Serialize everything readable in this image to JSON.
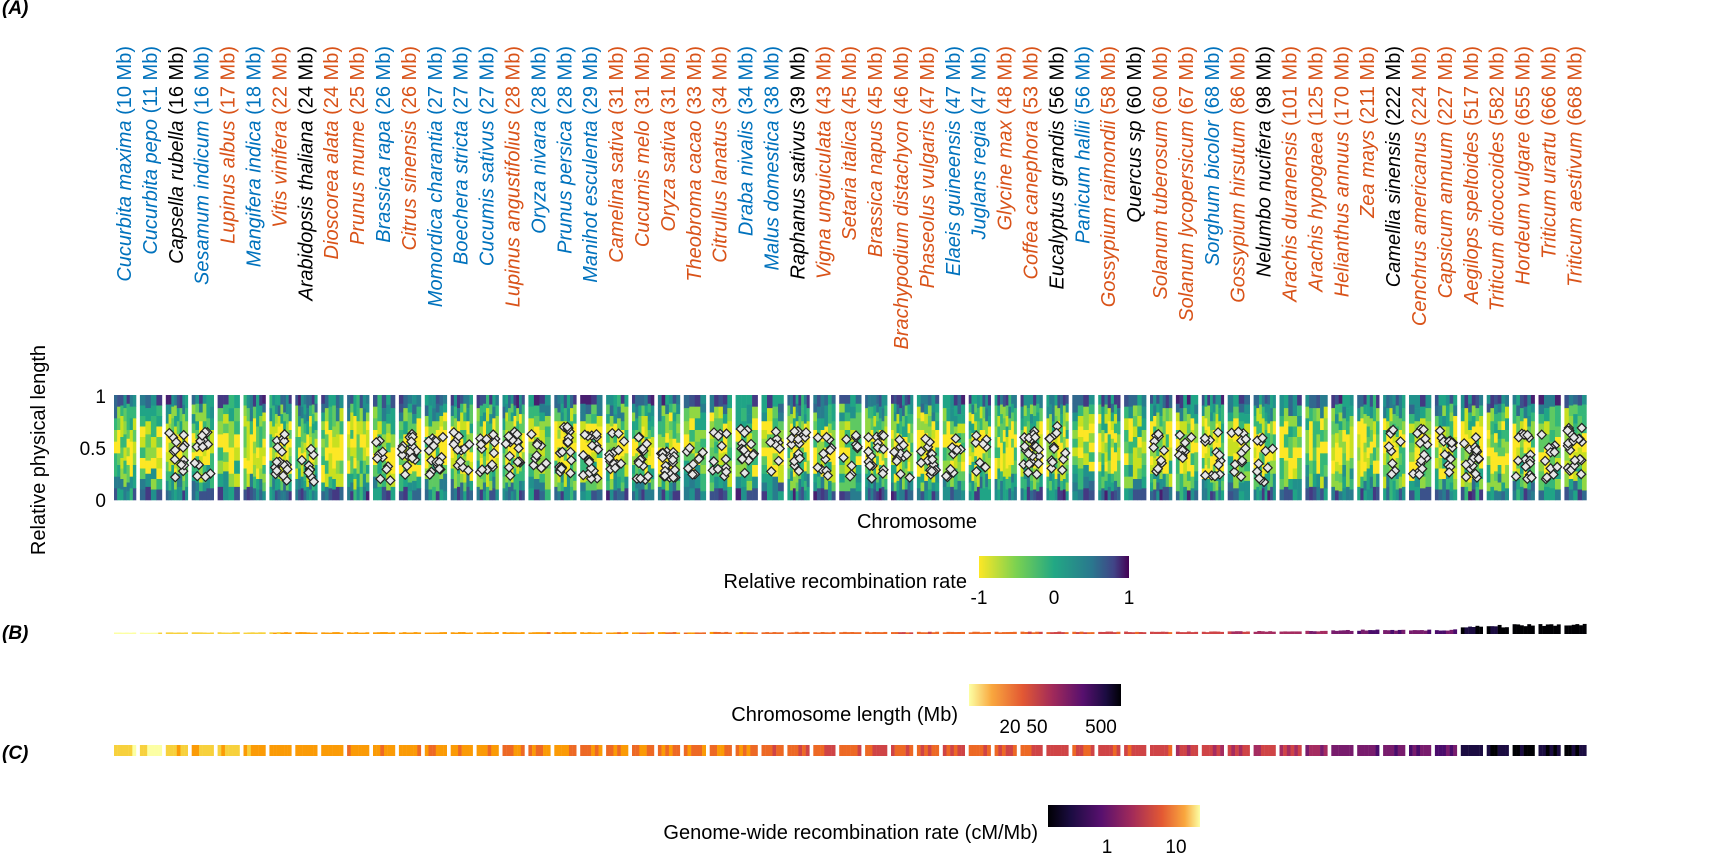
{
  "panel_labels": {
    "a": "(A)",
    "b": "(B)",
    "c": "(C)"
  },
  "colors": {
    "orange": "#d95319",
    "blue": "#0072bd",
    "black": "#000000"
  },
  "chart_data": [
    {
      "type": "heatmap",
      "panel": "A",
      "xlabel": "Chromosome",
      "ylabel": "Relative physical length",
      "yticks": [
        "1",
        "0.5",
        "0"
      ],
      "ylim": [
        0,
        1
      ],
      "colorbar": {
        "label": "Relative recombination rate",
        "ticks": [
          "-1",
          "0",
          "1"
        ],
        "colormap": "viridis (reversed)"
      },
      "species": [
        {
          "italic": "Cucurbita maxima",
          "rest": " (10 Mb)",
          "color": "blue"
        },
        {
          "italic": "Cucurbita pepo",
          "rest": " (11 Mb)",
          "color": "blue"
        },
        {
          "italic": "Capsella rubella",
          "rest": " (16 Mb)",
          "color": "black"
        },
        {
          "italic": "Sesamum indicum",
          "rest": " (16 Mb)",
          "color": "blue"
        },
        {
          "italic": "Lupinus albus",
          "rest": " (17 Mb)",
          "color": "orange"
        },
        {
          "italic": "Mangifera indica",
          "rest": " (18 Mb)",
          "color": "blue"
        },
        {
          "italic": "Vitis vinifera",
          "rest": " (22 Mb)",
          "color": "orange"
        },
        {
          "italic": "Arabidopsis thaliana",
          "rest": " (24 Mb)",
          "color": "black"
        },
        {
          "italic": "Dioscorea alata",
          "rest": " (24 Mb)",
          "color": "orange"
        },
        {
          "italic": "Prunus mume",
          "rest": " (25 Mb)",
          "color": "orange"
        },
        {
          "italic": "Brassica rapa",
          "rest": " (26 Mb)",
          "color": "blue"
        },
        {
          "italic": "Citrus sinensis",
          "rest": " (26 Mb)",
          "color": "orange"
        },
        {
          "italic": "Momordica charantia",
          "rest": " (27 Mb)",
          "color": "blue"
        },
        {
          "italic": "Boechera stricta",
          "rest": " (27 Mb)",
          "color": "blue"
        },
        {
          "italic": "Cucumis sativus",
          "rest": " (27 Mb)",
          "color": "blue"
        },
        {
          "italic": "Lupinus angustifolius",
          "rest": " (28 Mb)",
          "color": "orange"
        },
        {
          "italic": "Oryza nivara",
          "rest": " (28 Mb)",
          "color": "blue"
        },
        {
          "italic": "Prunus persica",
          "rest": " (28 Mb)",
          "color": "blue"
        },
        {
          "italic": "Manihot esculenta",
          "rest": " (29 Mb)",
          "color": "blue"
        },
        {
          "italic": "Camelina sativa",
          "rest": " (31 Mb)",
          "color": "orange"
        },
        {
          "italic": "Cucumis melo",
          "rest": " (31 Mb)",
          "color": "orange"
        },
        {
          "italic": "Oryza sativa",
          "rest": " (31 Mb)",
          "color": "orange"
        },
        {
          "italic": "Theobroma cacao",
          "rest": " (33 Mb)",
          "color": "orange"
        },
        {
          "italic": "Citrullus lanatus",
          "rest": " (34 Mb)",
          "color": "orange"
        },
        {
          "italic": "Draba nivalis",
          "rest": " (34 Mb)",
          "color": "blue"
        },
        {
          "italic": "Malus domestica",
          "rest": " (38 Mb)",
          "color": "blue"
        },
        {
          "italic": "Raphanus sativus",
          "rest": " (39 Mb)",
          "color": "black"
        },
        {
          "italic": "Vigna unguiculata",
          "rest": " (43 Mb)",
          "color": "orange"
        },
        {
          "italic": "Setaria italica",
          "rest": " (45 Mb)",
          "color": "orange"
        },
        {
          "italic": "Brassica napus",
          "rest": " (45 Mb)",
          "color": "orange"
        },
        {
          "italic": "Brachypodium distachyon",
          "rest": " (46 Mb)",
          "color": "orange"
        },
        {
          "italic": "Phaseolus vulgaris",
          "rest": " (47 Mb)",
          "color": "orange"
        },
        {
          "italic": "Elaeis guineensis",
          "rest": " (47 Mb)",
          "color": "blue"
        },
        {
          "italic": "Juglans regia",
          "rest": " (47 Mb)",
          "color": "blue"
        },
        {
          "italic": "Glycine max",
          "rest": " (48 Mb)",
          "color": "orange"
        },
        {
          "italic": "Coffea canephora",
          "rest": " (53 Mb)",
          "color": "orange"
        },
        {
          "italic": "Eucalyptus grandis",
          "rest": " (56 Mb)",
          "color": "black"
        },
        {
          "italic": "Panicum hallii",
          "rest": " (56 Mb)",
          "color": "blue"
        },
        {
          "italic": "Gossypium raimondii",
          "rest": " (58 Mb)",
          "color": "orange"
        },
        {
          "italic": "Quercus sp",
          "rest": " (60 Mb)",
          "color": "black"
        },
        {
          "italic": "Solanum tuberosum",
          "rest": " (60 Mb)",
          "color": "orange"
        },
        {
          "italic": "Solanum lycopersicum",
          "rest": " (67 Mb)",
          "color": "orange"
        },
        {
          "italic": "Sorghum bicolor",
          "rest": " (68 Mb)",
          "color": "blue"
        },
        {
          "italic": "Gossypium hirsutum",
          "rest": " (86 Mb)",
          "color": "orange"
        },
        {
          "italic": "Nelumbo nucifera",
          "rest": " (98 Mb)",
          "color": "black"
        },
        {
          "italic": "Arachis duranensis",
          "rest": " (101 Mb)",
          "color": "orange"
        },
        {
          "italic": "Arachis hypogaea",
          "rest": " (125 Mb)",
          "color": "orange"
        },
        {
          "italic": "Helianthus annuus",
          "rest": " (170 Mb)",
          "color": "orange"
        },
        {
          "italic": "Zea mays",
          "rest": " (211 Mb)",
          "color": "orange"
        },
        {
          "italic": "Camellia sinensis",
          "rest": " (222 Mb)",
          "color": "black"
        },
        {
          "italic": "Cenchrus americanus",
          "rest": " (224 Mb)",
          "color": "orange"
        },
        {
          "italic": "Capsicum annuum",
          "rest": " (227 Mb)",
          "color": "orange"
        },
        {
          "italic": "Aegilops speltoides",
          "rest": " (517 Mb)",
          "color": "orange"
        },
        {
          "italic": "Triticum dicoccoides",
          "rest": " (582 Mb)",
          "color": "orange"
        },
        {
          "italic": "Hordeum vulgare",
          "rest": " (655 Mb)",
          "color": "orange"
        },
        {
          "italic": "Triticum urartu",
          "rest": " (666 Mb)",
          "color": "orange"
        },
        {
          "italic": "Triticum aestivum",
          "rest": " (668 Mb)",
          "color": "orange"
        }
      ]
    },
    {
      "type": "heatmap",
      "panel": "B",
      "colorbar": {
        "label": "Chromosome length (Mb)",
        "ticks": [
          "20",
          "50",
          "500"
        ],
        "colormap": "inferno (reversed)"
      },
      "values_mb": [
        10,
        11,
        16,
        16,
        17,
        18,
        22,
        24,
        24,
        25,
        26,
        26,
        27,
        27,
        27,
        28,
        28,
        28,
        29,
        31,
        31,
        31,
        33,
        34,
        34,
        38,
        39,
        43,
        45,
        45,
        46,
        47,
        47,
        47,
        48,
        53,
        56,
        56,
        58,
        60,
        60,
        67,
        68,
        86,
        98,
        101,
        125,
        170,
        211,
        222,
        224,
        227,
        517,
        582,
        655,
        666,
        668
      ]
    },
    {
      "type": "heatmap",
      "panel": "C",
      "colorbar": {
        "label": "Genome-wide recombination rate (cM/Mb)",
        "ticks": [
          "1",
          "10"
        ],
        "colormap": "inferno",
        "scale": "log"
      }
    }
  ]
}
